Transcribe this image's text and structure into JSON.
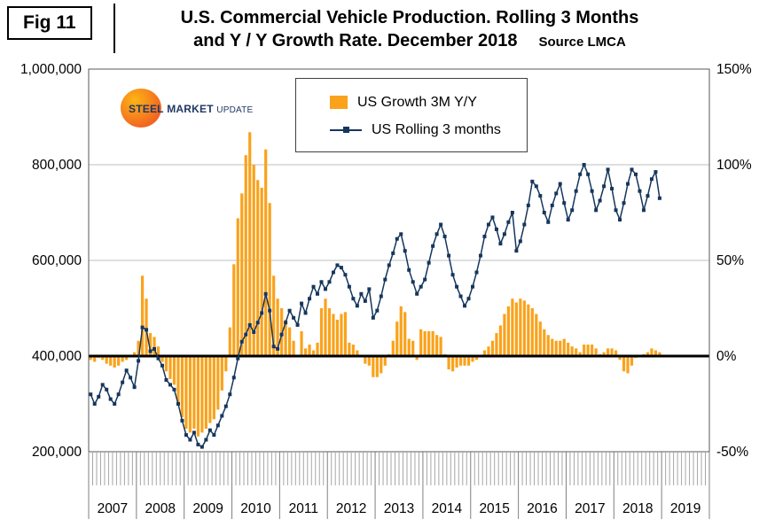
{
  "figure": {
    "tag": "Fig 11",
    "title_line1": "U.S. Commercial Vehicle Production. Rolling 3 Months",
    "title_line2": "and Y / Y Growth Rate. December 2018",
    "source": "Source LMCA"
  },
  "logo": {
    "word1": "STEEL",
    "word2": "MARKET",
    "word3": "UPDATE"
  },
  "colors": {
    "bars": "#FAA21B",
    "line": "#16365C",
    "grid": "#BFBFBF",
    "zero_line": "#000000",
    "plot_border": "#595959",
    "minor_tick": "#A6A6A6",
    "year_tick": "#808080"
  },
  "chart_data": {
    "type": "combo",
    "title": "U.S. Commercial Vehicle Production. Rolling 3 Months and Y / Y Growth Rate. December 2018",
    "x": {
      "start_year": 2007,
      "months_total": 156,
      "data_months": 144
    },
    "year_labels": [
      "2007",
      "2008",
      "2009",
      "2010",
      "2011",
      "2012",
      "2013",
      "2014",
      "2015",
      "2016",
      "2017",
      "2018",
      "2019"
    ],
    "left_axis": {
      "min": 200000,
      "max": 1000000,
      "tick_values": [
        1000000,
        800000,
        600000,
        400000,
        200000
      ],
      "tick_labels": [
        "1,000,000",
        "800,000",
        "600,000",
        "400,000",
        "200,000"
      ]
    },
    "right_axis": {
      "min": -50,
      "max": 150,
      "tick_values": [
        150,
        100,
        50,
        0,
        -50
      ],
      "tick_labels": [
        "150%",
        "100%",
        "50%",
        "0%",
        "-50%"
      ]
    },
    "zero_line": {
      "left_value": 400000,
      "right_value": 0
    },
    "legend_position": "top-center",
    "grid": "horizontal-only",
    "series": [
      {
        "name": "US Growth 3M Y/Y",
        "type": "bar",
        "axis": "right",
        "unit": "%",
        "values": [
          -2,
          -3,
          -1,
          -2,
          -4,
          -5,
          -6,
          -5,
          -3,
          -2,
          0,
          2,
          8,
          42,
          30,
          12,
          10,
          5,
          -3,
          -8,
          -12,
          -15,
          -25,
          -32,
          -38,
          -40,
          -38,
          -42,
          -40,
          -38,
          -35,
          -33,
          -28,
          -18,
          -8,
          15,
          48,
          72,
          85,
          105,
          117,
          100,
          92,
          88,
          108,
          80,
          42,
          30,
          25,
          19,
          15,
          8,
          0,
          13,
          4,
          6,
          3,
          7,
          25,
          30,
          25,
          22,
          19,
          22,
          23,
          7,
          6,
          3,
          0,
          -4,
          -5,
          -11,
          -11,
          -9,
          -5,
          1,
          8,
          18,
          26,
          23,
          9,
          8,
          -2,
          14,
          13,
          13,
          13,
          11,
          10,
          1,
          -7,
          -8,
          -6,
          -5,
          -5,
          -5,
          -3,
          -2,
          0,
          3,
          5,
          8,
          12,
          16,
          22,
          26,
          30,
          28,
          30,
          29,
          27,
          25,
          22,
          18,
          14,
          11,
          9,
          8,
          8,
          9,
          7,
          5,
          4,
          2,
          6,
          6,
          6,
          4,
          1,
          2,
          4,
          4,
          3,
          -2,
          -8,
          -9,
          -5,
          -1,
          0,
          1,
          2,
          4,
          3,
          2
        ]
      },
      {
        "name": "US Rolling 3 months",
        "type": "line",
        "axis": "left",
        "unit": "units",
        "values": [
          320000,
          300000,
          315000,
          340000,
          330000,
          310000,
          300000,
          320000,
          345000,
          370000,
          355000,
          335000,
          390000,
          460000,
          455000,
          410000,
          415000,
          395000,
          380000,
          350000,
          340000,
          330000,
          300000,
          265000,
          235000,
          225000,
          240000,
          215000,
          210000,
          225000,
          245000,
          235000,
          255000,
          275000,
          295000,
          320000,
          355000,
          395000,
          430000,
          445000,
          465000,
          450000,
          470000,
          490000,
          530000,
          495000,
          420000,
          415000,
          445000,
          470000,
          495000,
          480000,
          465000,
          510000,
          490000,
          520000,
          545000,
          530000,
          555000,
          540000,
          555000,
          575000,
          590000,
          585000,
          570000,
          545000,
          520000,
          505000,
          530000,
          515000,
          540000,
          480000,
          495000,
          525000,
          560000,
          590000,
          615000,
          645000,
          655000,
          620000,
          580000,
          555000,
          530000,
          545000,
          560000,
          595000,
          630000,
          655000,
          675000,
          650000,
          610000,
          570000,
          545000,
          525000,
          505000,
          520000,
          545000,
          575000,
          610000,
          650000,
          675000,
          690000,
          665000,
          635000,
          655000,
          680000,
          700000,
          620000,
          640000,
          675000,
          715000,
          765000,
          755000,
          735000,
          700000,
          680000,
          715000,
          740000,
          760000,
          720000,
          685000,
          705000,
          745000,
          780000,
          800000,
          780000,
          745000,
          705000,
          725000,
          755000,
          790000,
          750000,
          705000,
          685000,
          720000,
          760000,
          790000,
          780000,
          745000,
          705000,
          735000,
          770000,
          785000,
          730000
        ]
      }
    ]
  }
}
